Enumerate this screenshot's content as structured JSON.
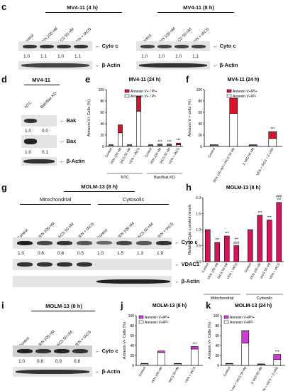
{
  "panels": {
    "c": {
      "label": "c",
      "left": {
        "title": "MV4-11 (4 h)",
        "lanes": [
          "Control",
          "VEN 100 nM",
          "IACS 50 nM",
          "VEN + IACS"
        ],
        "ratios": [
          "1.0",
          "1.1",
          "1.0",
          "1.1"
        ]
      },
      "right": {
        "title": "MV4-11 (8 h)",
        "lanes": [
          "Control",
          "VEN 100 nM",
          "IACS 50 nM",
          "VEN + IACS"
        ],
        "ratios": [
          "1.0",
          "1.0",
          "1.0",
          "1.1"
        ]
      },
      "rows": [
        "Cyto c",
        "β-Actin"
      ]
    },
    "d": {
      "label": "d",
      "title": "MV4-11",
      "lanes": [
        "NTC",
        "Bak/Bax KD"
      ],
      "rows": [
        "Bak",
        "Bax",
        "β-Actin"
      ],
      "bak_ratios": [
        "1.0",
        "0.0"
      ],
      "bax_ratios": [
        "1.0",
        "0.1"
      ]
    },
    "e": {
      "label": "e"
    },
    "f": {
      "label": "f"
    },
    "g": {
      "label": "g",
      "title": "MOLM-13 (8 h)",
      "groups": [
        "Mitochondrial",
        "Cytosolic"
      ],
      "lanes": [
        "Control",
        "VEN 100 nM",
        "IACS 50 nM",
        "VEN + IACS",
        "Control",
        "VEN 100 nM",
        "IACS 50 nM",
        "VEN + IACS"
      ],
      "ratios": [
        "1.0",
        "0.6",
        "0.8",
        "0.5",
        "1.0",
        "1.5",
        "1.3",
        "1.9"
      ],
      "rows": [
        "Cyto c",
        "VDAC1",
        "β-Actin"
      ]
    },
    "h": {
      "label": "h"
    },
    "i": {
      "label": "i",
      "title": "MOLM-13 (8 h)",
      "lanes": [
        "Control",
        "VEN 100 nM",
        "IACS 50 nM",
        "VEN + IACS"
      ],
      "ratios": [
        "1.0",
        "0.8",
        "0.9",
        "0.8"
      ],
      "rows": [
        "Cyto c",
        "β-Actin"
      ]
    },
    "j": {
      "label": "j"
    },
    "k": {
      "label": "k"
    }
  },
  "chart_data": [
    {
      "id": "e",
      "type": "bar",
      "stacked": true,
      "title": "MV4-11 (24 h)",
      "ylabel": "Annexin V+ Cells (%)",
      "ylim": [
        0,
        100
      ],
      "yticks": [
        0,
        20,
        40,
        60,
        80,
        100
      ],
      "categories": [
        "Control",
        "VEN 100 nM",
        "IACS 50 nM",
        "VEN + IACS",
        "Control",
        "VEN 100 nM",
        "IACS 50 nM",
        "VEN + IACS"
      ],
      "groups": [
        {
          "name": "NTC",
          "from": 0,
          "to": 3
        },
        {
          "name": "Bax/Bak KD",
          "from": 4,
          "to": 7
        }
      ],
      "series": [
        {
          "name": "Annexin V+ / PI-",
          "color": "#ffffff",
          "values": [
            2,
            24,
            2,
            62,
            2,
            2,
            2,
            3
          ]
        },
        {
          "name": "Annexin V+ / PI+",
          "color": "#d9142a",
          "values": [
            1,
            14,
            1,
            26,
            1,
            2,
            2,
            3
          ]
        }
      ],
      "sig": [
        "",
        "",
        "",
        "",
        "",
        "***",
        "***",
        "***"
      ],
      "legend": "top-right"
    },
    {
      "id": "f",
      "type": "bar",
      "stacked": true,
      "title": "MV4-11 (24 h)",
      "ylabel": "Annexin V + cells (%)",
      "ylim": [
        0,
        100
      ],
      "yticks": [
        0,
        20,
        40,
        60,
        80,
        100
      ],
      "categories": [
        "Control",
        "VEN 100 nM + IACS 50 nM",
        "Z-VAD 50 nM",
        "VEN + IACS + Z-VAD"
      ],
      "series": [
        {
          "name": "Annexin V+/PI-",
          "color": "#ffffff",
          "values": [
            2,
            58,
            2,
            14
          ]
        },
        {
          "name": "Annexin V+/PI+",
          "color": "#d9142a",
          "values": [
            1,
            27,
            1,
            12
          ]
        }
      ],
      "sig": [
        "",
        "",
        "",
        "***"
      ],
      "legend": "top-right"
    },
    {
      "id": "h",
      "type": "bar",
      "title": "MOLM-13 (8 h)",
      "ylabel": "Relative Cyto c protein levels",
      "ylim": [
        0,
        2.0
      ],
      "yticks": [
        0.0,
        0.5,
        1.0,
        1.5,
        2.0
      ],
      "categories": [
        "Control",
        "VEN 100 nM",
        "IACS 50 nM",
        "VEN + IACS",
        "Control",
        "VEN 100 nM",
        "IACS 50 nM",
        "VEN + IACS"
      ],
      "groups": [
        {
          "name": "Mitochondrial",
          "from": 0,
          "to": 3
        },
        {
          "name": "Cytosolic",
          "from": 4,
          "to": 7
        }
      ],
      "series": [
        {
          "name": "",
          "color": "#d4145a",
          "values": [
            1.0,
            0.6,
            0.8,
            0.5,
            1.0,
            1.45,
            1.3,
            1.85
          ]
        }
      ],
      "sig": [
        "",
        "***",
        "***",
        "***\n###",
        "",
        "***",
        "***",
        "###\n***"
      ]
    },
    {
      "id": "j",
      "type": "bar",
      "stacked": true,
      "title": "MOLM-13 (8 h)",
      "ylabel": "Annexin V+ Cells (%)",
      "ylim": [
        0,
        100
      ],
      "yticks": [
        0,
        20,
        40,
        60,
        80,
        100
      ],
      "categories": [
        "Control",
        "VEN 100 nM",
        "IACS 50 nM",
        "VEN + IACS"
      ],
      "series": [
        {
          "name": "Annexin V+/PI-",
          "color": "#ffffff",
          "values": [
            3,
            26,
            3,
            33
          ]
        },
        {
          "name": "Annexin V+/PI+",
          "color": "#d23bd9",
          "values": [
            1,
            3,
            1,
            5
          ]
        }
      ],
      "sig": [
        "",
        "",
        "",
        "***"
      ],
      "legend": "top-left"
    },
    {
      "id": "k",
      "type": "bar",
      "stacked": true,
      "title": "MOLM-13 (24 h)",
      "ylabel": "Annexin V+ Cells (%)",
      "ylim": [
        0,
        100
      ],
      "yticks": [
        0,
        20,
        40,
        60,
        80,
        100
      ],
      "categories": [
        "Control",
        "VEN 100 nM + IACS 50 nM",
        "Z-VAD 50 nM",
        "VEN + IACS + Z-VAD"
      ],
      "series": [
        {
          "name": "Annexin V+/PI-",
          "color": "#ffffff",
          "values": [
            3,
            45,
            2,
            12
          ]
        },
        {
          "name": "Annexin V+/PI+",
          "color": "#d23bd9",
          "values": [
            1,
            25,
            1,
            10
          ]
        }
      ],
      "sig": [
        "",
        "",
        "",
        "***"
      ],
      "legend": "top-left"
    }
  ]
}
